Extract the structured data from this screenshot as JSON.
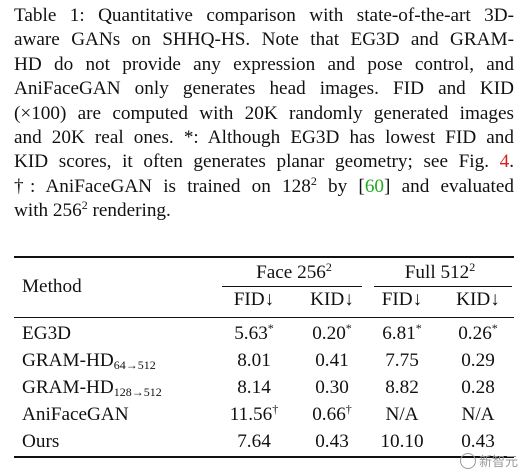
{
  "caption": {
    "line1": "Table 1: Quantitative comparison with state-of-the-art 3D-",
    "line2": "aware GANs on SHHQ-HS. Note that EG3D and GRAM-",
    "line3": "HD do not provide any expression and pose control, and",
    "line4": "AniFaceGAN only generates head images.  FID and KID",
    "line5": "(×100) are computed with 20K randomly generated images",
    "line6a": "and 20K real ones.",
    "line6b": "*: Although EG3D has lowest FID and",
    "line7a": "KID scores, it often generates planar geometry; see Fig.",
    "fig_ref": "4",
    "line7b": ".",
    "line8a": "†: AniFaceGAN is trained on 128",
    "line8b": " by [",
    "cite_ref": "60",
    "line8c": "] and evaluated",
    "line9a": "with 256",
    "line9b": " rendering.",
    "sup2": "2"
  },
  "table": {
    "method_header": "Method",
    "group1": "Face 256",
    "group2": "Full 512",
    "group_sup": "2",
    "fid_label": "FID↓",
    "kid_label": "KID↓",
    "rows": [
      {
        "name": "EG3D",
        "sub": "",
        "face_fid": "5.63",
        "face_fid_mark": "*",
        "face_kid": "0.20",
        "face_kid_mark": "*",
        "full_fid": "6.81",
        "full_fid_mark": "*",
        "full_kid": "0.26",
        "full_kid_mark": "*"
      },
      {
        "name": "GRAM-HD",
        "sub": "64→512",
        "face_fid": "8.01",
        "face_fid_mark": "",
        "face_kid": "0.41",
        "face_kid_mark": "",
        "full_fid": "7.75",
        "full_fid_mark": "",
        "full_kid": "0.29",
        "full_kid_mark": ""
      },
      {
        "name": "GRAM-HD",
        "sub": "128→512",
        "face_fid": "8.14",
        "face_fid_mark": "",
        "face_kid": "0.30",
        "face_kid_mark": "",
        "full_fid": "8.82",
        "full_fid_mark": "",
        "full_kid": "0.28",
        "full_kid_mark": ""
      },
      {
        "name": "AniFaceGAN",
        "sub": "",
        "face_fid": "11.56",
        "face_fid_mark": "†",
        "face_kid": "0.66",
        "face_kid_mark": "†",
        "full_fid": "N/A",
        "full_fid_mark": "",
        "full_kid": "N/A",
        "full_kid_mark": ""
      },
      {
        "name": "Ours",
        "sub": "",
        "face_fid": "7.64",
        "face_fid_mark": "",
        "face_kid": "0.43",
        "face_kid_mark": "",
        "full_fid": "10.10",
        "full_fid_mark": "",
        "full_kid": "0.43",
        "full_kid_mark": ""
      }
    ]
  },
  "watermark": {
    "text": "新智元",
    "icon": "wechat-logo-icon"
  }
}
